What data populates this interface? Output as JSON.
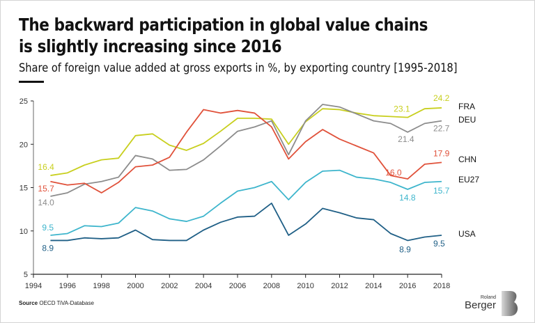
{
  "header": {
    "title_line1": "The backward participation in global value chains",
    "title_line2": "is slightly increasing since 2016",
    "subtitle": "Share of foreign value added at gross exports in %, by exporting country [1995-2018]"
  },
  "footer": {
    "source_label": "Source",
    "source_text": "OECD TiVA-Database",
    "logo_small": "Roland",
    "logo_main": "Berger"
  },
  "chart_data": {
    "type": "line",
    "title": "The backward participation in global value chains is slightly increasing since 2016",
    "subtitle": "Share of foreign value added at gross exports in %, by exporting country [1995-2018]",
    "xlabel": "",
    "ylabel": "",
    "xlim": [
      1994,
      2018
    ],
    "ylim": [
      5,
      25
    ],
    "xticks": [
      1994,
      1996,
      1998,
      2000,
      2002,
      2004,
      2006,
      2008,
      2010,
      2012,
      2014,
      2016,
      2018
    ],
    "yticks": [
      5,
      10,
      15,
      20,
      25
    ],
    "grid": false,
    "legend": "right, inline labels at line ends",
    "x": [
      1995,
      1996,
      1997,
      1998,
      1999,
      2000,
      2001,
      2002,
      2003,
      2004,
      2005,
      2006,
      2007,
      2008,
      2009,
      2010,
      2011,
      2012,
      2013,
      2014,
      2015,
      2016,
      2017,
      2018
    ],
    "series": [
      {
        "name": "FRA",
        "color": "#c8cf1e",
        "values": [
          16.4,
          16.7,
          17.6,
          18.2,
          18.4,
          21.0,
          21.2,
          19.9,
          19.3,
          20.1,
          21.5,
          23.0,
          23.0,
          22.9,
          20.0,
          22.6,
          24.1,
          24.0,
          23.6,
          23.3,
          23.2,
          23.1,
          24.1,
          24.2
        ],
        "annotations": [
          {
            "year": 1995,
            "label": "16.4"
          },
          {
            "year": 2016,
            "label": "23.1"
          },
          {
            "year": 2018,
            "label": "24.2"
          }
        ]
      },
      {
        "name": "DEU",
        "color": "#8c8c8c",
        "values": [
          14.0,
          14.4,
          15.4,
          15.7,
          16.2,
          18.7,
          18.3,
          17.0,
          17.1,
          18.2,
          19.8,
          21.5,
          22.0,
          22.7,
          18.8,
          22.7,
          24.6,
          24.3,
          23.5,
          22.7,
          22.4,
          21.4,
          22.4,
          22.7
        ],
        "annotations": [
          {
            "year": 1995,
            "label": "14.0"
          },
          {
            "year": 2016,
            "label": "21.4"
          },
          {
            "year": 2018,
            "label": "22.7"
          }
        ]
      },
      {
        "name": "CHN",
        "color": "#e0513a",
        "values": [
          15.7,
          15.3,
          15.5,
          14.4,
          15.6,
          17.4,
          17.6,
          18.5,
          21.4,
          24.0,
          23.6,
          23.9,
          23.6,
          22.0,
          18.3,
          20.3,
          21.7,
          20.6,
          19.8,
          19.0,
          16.4,
          16.0,
          17.7,
          17.9
        ],
        "annotations": [
          {
            "year": 1995,
            "label": "15.7"
          },
          {
            "year": 2016,
            "label": "16.0"
          },
          {
            "year": 2018,
            "label": "17.9"
          }
        ]
      },
      {
        "name": "EU27",
        "color": "#3db5cc",
        "values": [
          9.5,
          9.7,
          10.6,
          10.5,
          10.9,
          12.7,
          12.3,
          11.4,
          11.1,
          11.7,
          13.2,
          14.6,
          15.0,
          15.7,
          13.6,
          15.6,
          16.9,
          17.0,
          16.2,
          16.0,
          15.6,
          14.8,
          15.6,
          15.7
        ],
        "annotations": [
          {
            "year": 1995,
            "label": "9.5"
          },
          {
            "year": 2016,
            "label": "14.8"
          },
          {
            "year": 2018,
            "label": "15.7"
          }
        ]
      },
      {
        "name": "USA",
        "color": "#1f5f86",
        "values": [
          8.9,
          8.9,
          9.2,
          9.1,
          9.2,
          10.1,
          9.0,
          8.9,
          8.9,
          10.1,
          11.0,
          11.6,
          11.7,
          13.2,
          9.5,
          10.8,
          12.6,
          12.1,
          11.5,
          11.3,
          9.7,
          8.9,
          9.3,
          9.5
        ],
        "annotations": [
          {
            "year": 1995,
            "label": "8.9"
          },
          {
            "year": 2016,
            "label": "8.9"
          },
          {
            "year": 2018,
            "label": "9.5"
          }
        ]
      }
    ]
  }
}
